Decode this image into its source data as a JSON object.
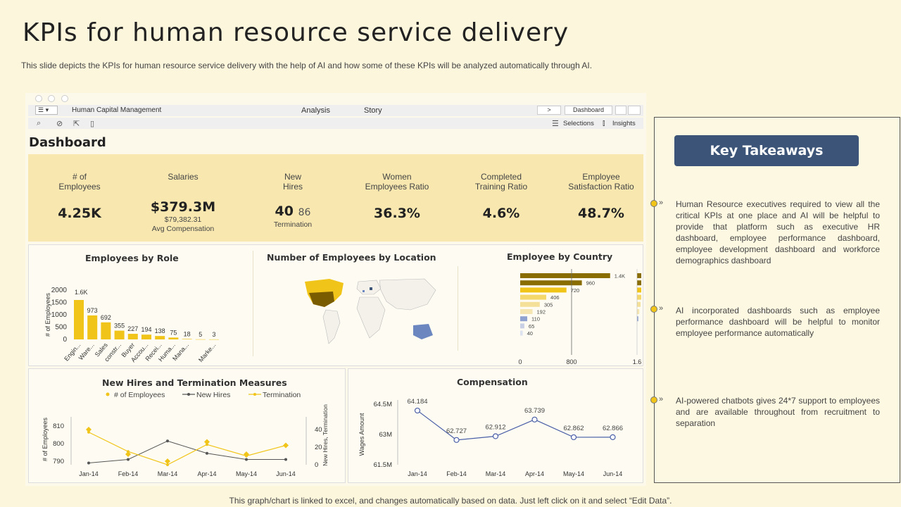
{
  "page": {
    "title": "KPIs for human resource service delivery",
    "subtitle": "This slide depicts the KPIs for human resource service delivery with the help of AI  and how some of these KPIs will be analyzed automatically through AI.",
    "footer": "This graph/chart is linked to excel,  and changes automatically based on data. Just left click on it and select “Edit Data”."
  },
  "app": {
    "name": "Human Capital Management",
    "tabs": [
      "Analysis",
      "Story"
    ],
    "nav_next": ">",
    "view_label": "Dashboard",
    "selections_label": "Selections",
    "insights_label": "Insights",
    "dashboard_title": "Dashboard"
  },
  "kpis": [
    {
      "label": "# of\nEmployees",
      "value": "4.25K"
    },
    {
      "label": "Salaries",
      "value": "$379.3M",
      "sub1": "$79,382.31",
      "sub2": "Avg Compensation"
    },
    {
      "label": "New\nHires",
      "value": "40",
      "value2": "86",
      "sub2": "Termination"
    },
    {
      "label": "Women\nEmployees Ratio",
      "value": "36.3%"
    },
    {
      "label": "Completed\nTraining Ratio",
      "value": "4.6%"
    },
    {
      "label": "Employee\nSatisfaction Ratio",
      "value": "48.7%"
    }
  ],
  "panels": {
    "role": "Employees by Role",
    "location": "Number of Employees by Location",
    "country": "Employee by Country",
    "hires": "New Hires and Termination Measures",
    "compensation": "Compensation"
  },
  "colors": {
    "accent": "#f0c419",
    "navy": "#3b5478",
    "dark_gold": "#8a6d00",
    "line_blue": "#4a5fa8"
  },
  "chart_data": [
    {
      "type": "bar",
      "title": "Employees by Role",
      "ylabel": "# of Employees",
      "ylim": [
        0,
        2000
      ],
      "yticks": [
        "0",
        "500",
        "1000",
        "1500",
        "2000"
      ],
      "categories": [
        "Engin...",
        "Ware...",
        "Sales",
        "constr...",
        "Buyer",
        "Accou...",
        "Recei...",
        "Huma...",
        "Mana...",
        "",
        "Marke..."
      ],
      "values": [
        1600,
        973,
        692,
        355,
        227,
        194,
        138,
        75,
        18,
        5,
        3
      ],
      "data_labels": [
        "1.6K",
        "973",
        "692",
        "355",
        "227",
        "194",
        "138",
        "75",
        "18",
        "5",
        "3"
      ]
    },
    {
      "type": "bar",
      "title": "Employee by Country",
      "orientation": "horizontal",
      "xticks": [
        "0",
        "800"
      ],
      "values": [
        1400,
        960,
        720,
        406,
        305,
        192,
        110,
        65,
        40
      ],
      "data_labels": [
        "1.4K",
        "960",
        "720",
        "406",
        "305",
        "192",
        "110",
        "65",
        "40"
      ],
      "secondary_axis_tick": "1.6"
    },
    {
      "type": "line",
      "title": "New Hires and Termination Measures",
      "categories": [
        "Jan-14",
        "Feb-14",
        "Mar-14",
        "Apr-14",
        "May-14",
        "Jun-14"
      ],
      "ylabel": "# of Employees",
      "y2label": "New Hires, Termination",
      "ylim": [
        788,
        812
      ],
      "yticks": [
        "790",
        "800",
        "810"
      ],
      "y2lim": [
        0,
        48
      ],
      "y2ticks": [
        "0",
        "20",
        "40"
      ],
      "legend": [
        "# of Employees",
        "New Hires",
        "Termination"
      ],
      "series": [
        {
          "name": "# of Employees",
          "axis": "left",
          "values": [
            808,
            794,
            790,
            801,
            794,
            799
          ]
        },
        {
          "name": "New Hires",
          "axis": "right",
          "values": [
            2,
            6,
            27,
            13,
            6,
            6
          ]
        },
        {
          "name": "Termination",
          "axis": "right",
          "values": [
            37,
            15,
            0,
            23,
            10,
            22
          ]
        }
      ]
    },
    {
      "type": "line",
      "title": "Compensation",
      "ylabel": "Wages Amount",
      "ylim": [
        61.5,
        64.5
      ],
      "yticks": [
        "61.5M",
        "63M",
        "64.5M"
      ],
      "categories": [
        "Jan-14",
        "Feb-14",
        "Mar-14",
        "Apr-14",
        "May-14",
        "Jun-14"
      ],
      "values": [
        64.184,
        62.727,
        62.912,
        63.739,
        62.862,
        62.866
      ],
      "data_labels": [
        "64.184",
        "62.727",
        "62.912",
        "63.739",
        "62.862",
        "62.866"
      ]
    }
  ],
  "takeaways": {
    "heading": "Key Takeaways",
    "items": [
      "Human Resource executives required to view all the critical KPIs at one place and AI will be helpful to provide that platform such as executive HR dashboard, employee performance dashboard, employee development dashboard and workforce demographics dashboard",
      "AI incorporated dashboards such as employee performance dashboard will be helpful to monitor employee performance automatically",
      "AI-powered chatbots gives 24*7 support to employees and are available throughout from recruitment to separation"
    ]
  }
}
